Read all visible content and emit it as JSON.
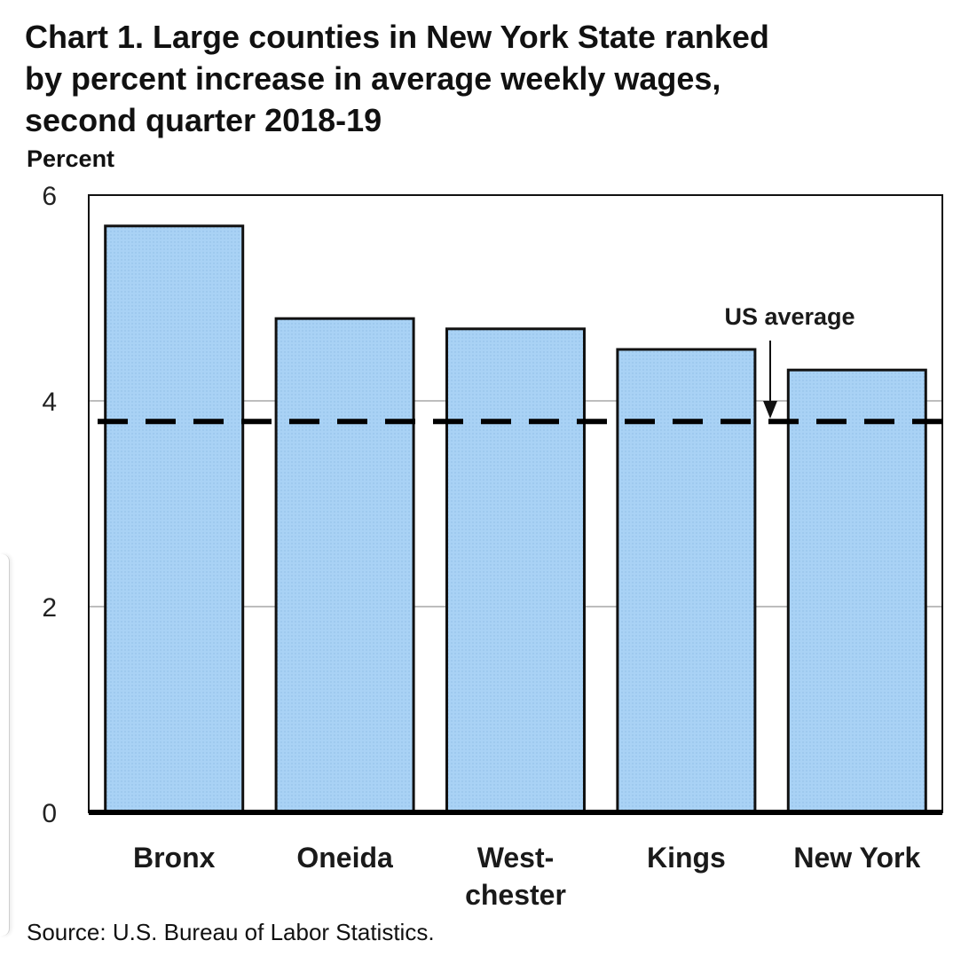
{
  "chart_data": {
    "type": "bar",
    "title_lines": [
      "Chart 1. Large counties in New York State ranked",
      "by percent increase in average weekly wages,",
      "second quarter 2018-19"
    ],
    "ylabel": "Percent",
    "xlabel": "",
    "categories": [
      [
        "Bronx"
      ],
      [
        "Oneida"
      ],
      [
        "West-",
        "chester"
      ],
      [
        "Kings"
      ],
      [
        "New York"
      ]
    ],
    "values": [
      5.7,
      4.8,
      4.7,
      4.5,
      4.3
    ],
    "ylim": [
      0,
      6
    ],
    "yticks": [
      0,
      2,
      4,
      6
    ],
    "grid": true,
    "reference_line": {
      "value": 3.8,
      "label": "US average",
      "style": "dashed"
    },
    "bar_color": "#a9d2f5",
    "bar_edge_color": "#111111",
    "source": "Source: U.S. Bureau of Labor Statistics."
  }
}
